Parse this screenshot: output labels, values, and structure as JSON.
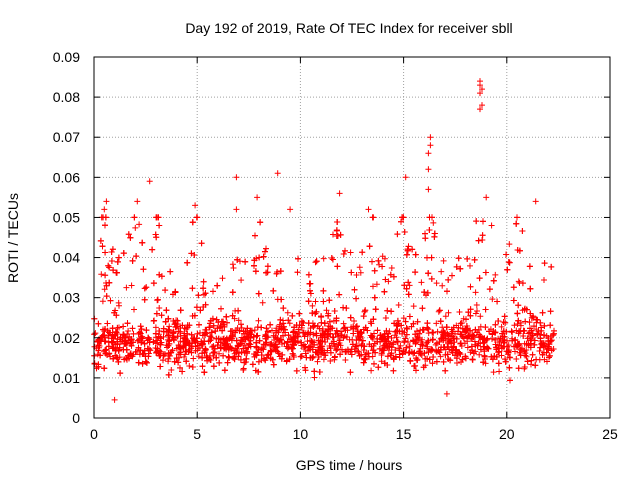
{
  "chart_data": {
    "type": "scatter",
    "title": "Day 192 of 2019, Rate Of TEC Index for receiver sbll",
    "xlabel": "GPS time / hours",
    "ylabel": "ROTI / TECUs",
    "xlim": [
      0,
      25
    ],
    "ylim": [
      0,
      0.09
    ],
    "xticks": [
      0,
      5,
      10,
      15,
      20,
      25
    ],
    "yticks": [
      0,
      0.01,
      0.02,
      0.03,
      0.04,
      0.05,
      0.06,
      0.07,
      0.08,
      0.09
    ],
    "xtick_labels": [
      "0",
      "5",
      "10",
      "15",
      "20",
      "25"
    ],
    "ytick_labels": [
      "0",
      "0.01",
      "0.02",
      "0.03",
      "0.04",
      "0.05",
      "0.06",
      "0.07",
      "0.08",
      "0.09"
    ],
    "grid": true,
    "marker": "plus",
    "color": "#ff0000",
    "x_range_of_data": [
      0,
      22.3
    ],
    "notable_points": [
      {
        "x": 18.7,
        "y": 0.084
      },
      {
        "x": 18.7,
        "y": 0.083
      },
      {
        "x": 18.8,
        "y": 0.082
      },
      {
        "x": 18.7,
        "y": 0.081
      },
      {
        "x": 18.8,
        "y": 0.078
      },
      {
        "x": 18.7,
        "y": 0.077
      },
      {
        "x": 16.3,
        "y": 0.07
      },
      {
        "x": 16.3,
        "y": 0.068
      },
      {
        "x": 16.2,
        "y": 0.066
      },
      {
        "x": 16.2,
        "y": 0.062
      },
      {
        "x": 8.9,
        "y": 0.061
      },
      {
        "x": 6.9,
        "y": 0.06
      },
      {
        "x": 15.1,
        "y": 0.06
      },
      {
        "x": 2.7,
        "y": 0.059
      },
      {
        "x": 16.2,
        "y": 0.057
      },
      {
        "x": 11.9,
        "y": 0.056
      },
      {
        "x": 19.0,
        "y": 0.055
      },
      {
        "x": 7.9,
        "y": 0.055
      },
      {
        "x": 21.4,
        "y": 0.054
      },
      {
        "x": 0.6,
        "y": 0.054
      },
      {
        "x": 2.1,
        "y": 0.054
      },
      {
        "x": 4.9,
        "y": 0.053
      },
      {
        "x": 0.5,
        "y": 0.052
      },
      {
        "x": 6.9,
        "y": 0.052
      },
      {
        "x": 13.3,
        "y": 0.052
      },
      {
        "x": 9.5,
        "y": 0.052
      },
      {
        "x": 1.0,
        "y": 0.0045
      },
      {
        "x": 17.1,
        "y": 0.006
      }
    ]
  }
}
